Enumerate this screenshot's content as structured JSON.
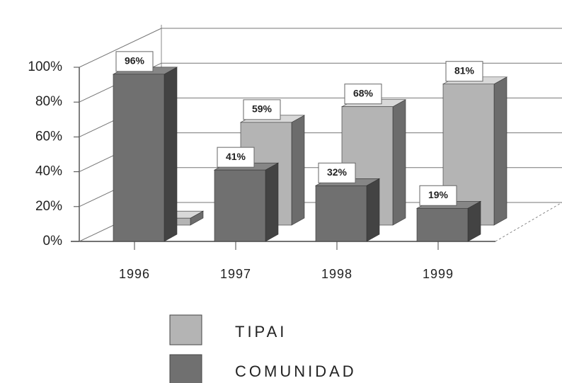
{
  "chart_data": {
    "type": "bar3d",
    "categories": [
      "1996",
      "1997",
      "1998",
      "1999"
    ],
    "series": [
      {
        "name": "TIPAI",
        "color": "#b4b4b4",
        "values": [
          4,
          59,
          68,
          81
        ],
        "value_labels": [
          null,
          "59%",
          "68%",
          "81%"
        ]
      },
      {
        "name": "COMUNIDAD",
        "color": "#707070",
        "values": [
          96,
          41,
          32,
          19
        ],
        "value_labels": [
          "96%",
          "41%",
          "32%",
          "19%"
        ]
      }
    ],
    "ylim": [
      0,
      100
    ],
    "yticks": [
      {
        "value": 0,
        "label": "0%"
      },
      {
        "value": 20,
        "label": "20%"
      },
      {
        "value": 40,
        "label": "40%"
      },
      {
        "value": 60,
        "label": "60%"
      },
      {
        "value": 80,
        "label": "80%"
      },
      {
        "value": 100,
        "label": "100%"
      }
    ],
    "grid": true
  }
}
